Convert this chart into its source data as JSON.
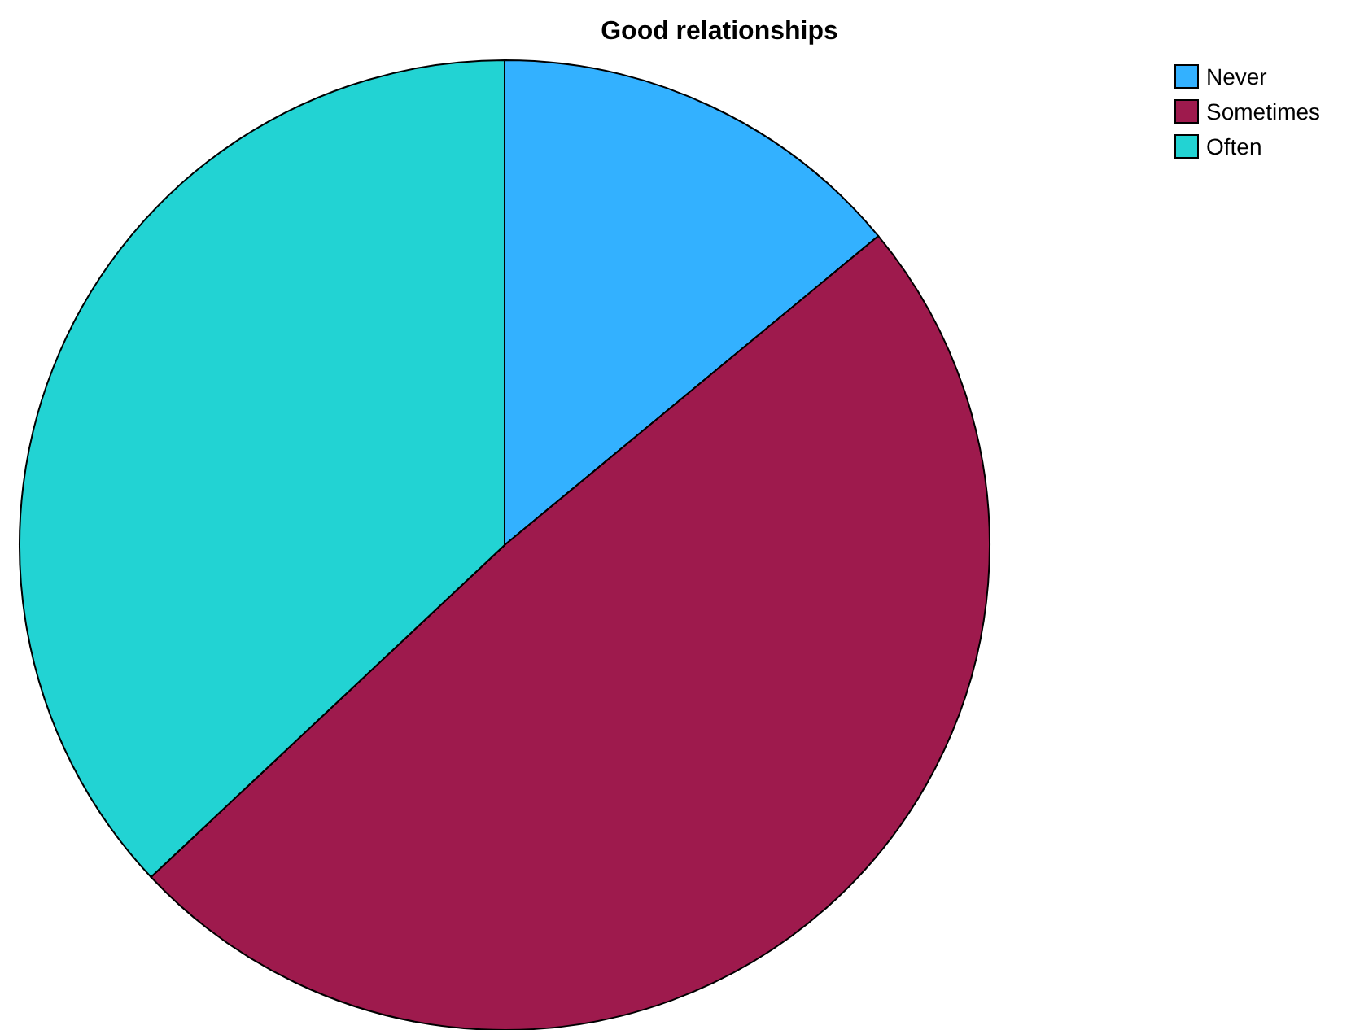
{
  "chart_data": {
    "type": "pie",
    "title": "Good relationships",
    "categories": [
      "Never",
      "Sometimes",
      "Often"
    ],
    "values": [
      14,
      49,
      37
    ],
    "colors": [
      "#33b1ff",
      "#9e1a4d",
      "#22d3d3"
    ],
    "legend": "top right"
  }
}
